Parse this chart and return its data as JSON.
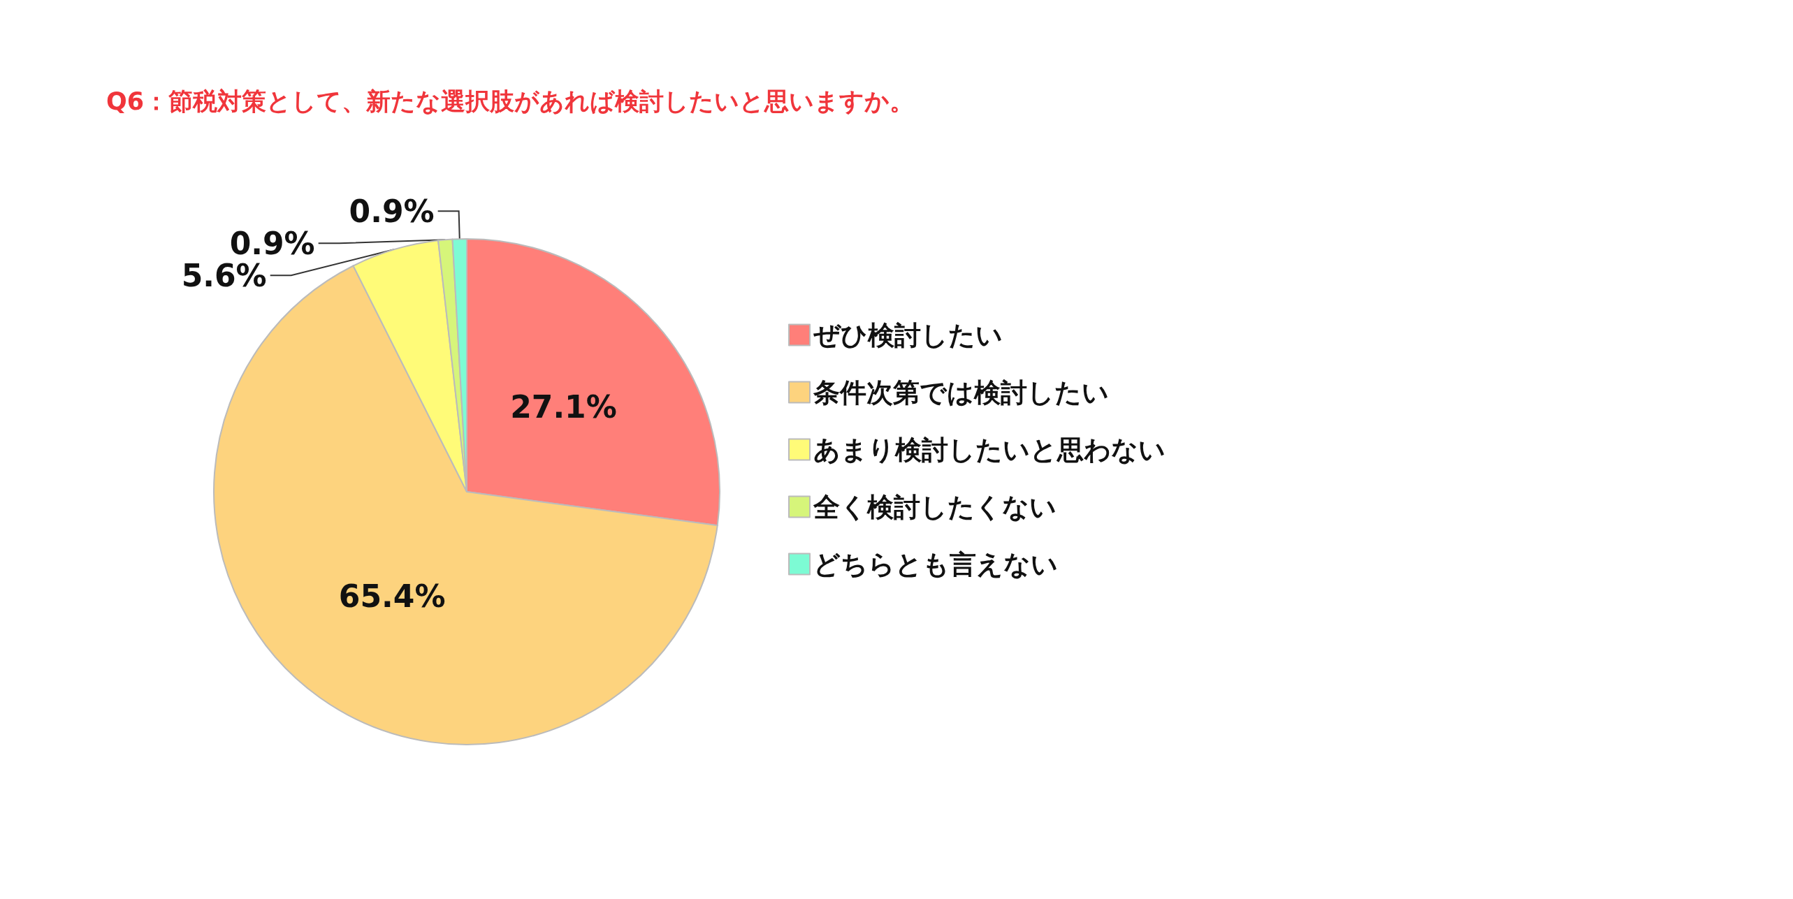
{
  "chart_data": {
    "type": "pie",
    "title": "Q6：節税対策として、新たな選択肢があれば検討したいと思いますか。",
    "categories": [
      "ぜひ検討したい",
      "条件次第では検討したい",
      "あまり検討したいと思わない",
      "全く検討したくない",
      "どちらとも言えない"
    ],
    "values": [
      27.1,
      65.4,
      5.6,
      0.9,
      0.9
    ],
    "value_labels": [
      "27.1%",
      "65.4%",
      "5.6%",
      "0.9%",
      "0.9%"
    ],
    "colors": [
      "#ff7f79",
      "#fdd37e",
      "#fffb78",
      "#d6f57a",
      "#7dfbd4"
    ],
    "legend": "right"
  }
}
